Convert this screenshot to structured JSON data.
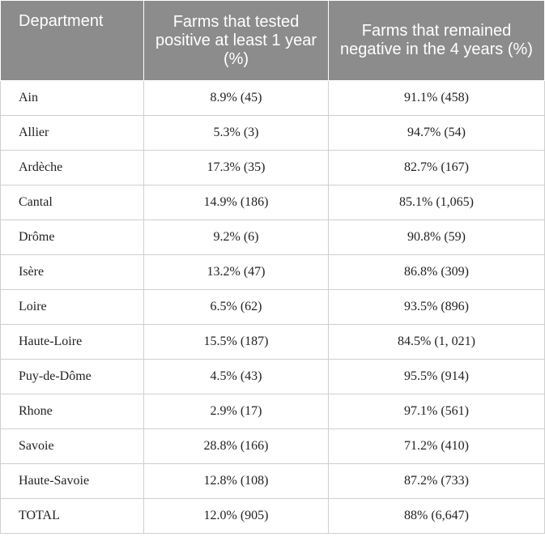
{
  "table": {
    "headers": [
      "Department",
      "Farms that tested positive at least 1 year (%)",
      "Farms that remained negative in the 4 years (%)"
    ],
    "rows": [
      {
        "department": "Ain",
        "positive": "8.9% (45)",
        "negative": "91.1% (458)"
      },
      {
        "department": "Allier",
        "positive": "5.3% (3)",
        "negative": "94.7% (54)"
      },
      {
        "department": "Ardèche",
        "positive": "17.3% (35)",
        "negative": "82.7% (167)"
      },
      {
        "department": "Cantal",
        "positive": "14.9% (186)",
        "negative": "85.1% (1,065)"
      },
      {
        "department": "Drôme",
        "positive": "9.2% (6)",
        "negative": "90.8% (59)"
      },
      {
        "department": "Isère",
        "positive": "13.2% (47)",
        "negative": "86.8% (309)"
      },
      {
        "department": "Loire",
        "positive": "6.5% (62)",
        "negative": "93.5% (896)"
      },
      {
        "department": "Haute-Loire",
        "positive": "15.5% (187)",
        "negative": "84.5% (1, 021)"
      },
      {
        "department": "Puy-de-Dôme",
        "positive": "4.5% (43)",
        "negative": "95.5% (914)"
      },
      {
        "department": "Rhone",
        "positive": "2.9% (17)",
        "negative": "97.1% (561)"
      },
      {
        "department": "Savoie",
        "positive": "28.8% (166)",
        "negative": "71.2% (410)"
      },
      {
        "department": "Haute-Savoie",
        "positive": "12.8% (108)",
        "negative": "87.2% (733)"
      },
      {
        "department": "TOTAL",
        "positive": "12.0% (905)",
        "negative": "88% (6,647)"
      }
    ]
  }
}
